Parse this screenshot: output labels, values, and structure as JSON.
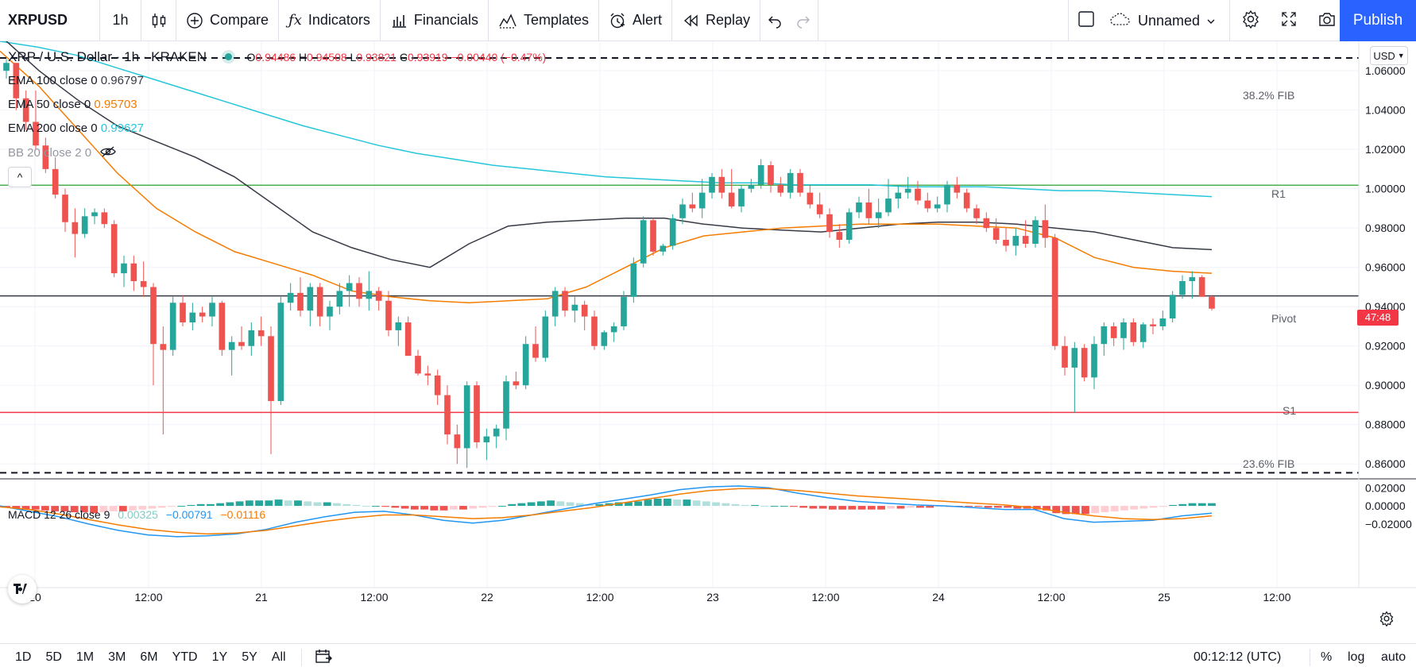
{
  "toolbar": {
    "symbol": "XRPUSD",
    "interval": "1h",
    "compare": "Compare",
    "indicators": "Indicators",
    "financials": "Financials",
    "templates": "Templates",
    "alert": "Alert",
    "replay": "Replay",
    "layout_name": "Unnamed",
    "publish": "Publish"
  },
  "legend": {
    "title": "XRP / U.S. Dollar · 1h · KRAKEN",
    "ohlc": {
      "o_label": "O",
      "o": "0.94486",
      "h_label": "H",
      "h": "0.94508",
      "l_label": "L",
      "l": "0.93821",
      "c_label": "C",
      "c": "0.93919",
      "change": "−0.00440 (−0.47%)"
    },
    "ema100": {
      "label": "EMA 100 close 0",
      "value": "0.96797",
      "color": "#363a45"
    },
    "ema50": {
      "label": "EMA 50 close 0",
      "value": "0.95703",
      "color": "#f57c00"
    },
    "ema200": {
      "label": "EMA 200 close 0",
      "value": "0.99627",
      "color": "#26c6da"
    },
    "bb": {
      "label": "BB 20 close 2 0"
    },
    "collapse_label": "^"
  },
  "levels": {
    "fib382": "38.2% FIB",
    "r1": "R1",
    "pivot": "Pivot",
    "s1": "S1",
    "fib236": "23.6% FIB"
  },
  "price_axis": {
    "currency": "USD",
    "ticks": [
      "1.06000",
      "1.04000",
      "1.02000",
      "1.00000",
      "0.98000",
      "0.96000",
      "0.94000",
      "0.92000",
      "0.90000",
      "0.88000",
      "0.86000"
    ],
    "countdown": "47:48"
  },
  "macd": {
    "label": "MACD 12 26 close 9",
    "hist": "0.00325",
    "macd": "−0.00791",
    "signal": "−0.01116",
    "ticks": [
      "0.02000",
      "0.00000",
      "−0.02000"
    ]
  },
  "time_axis": {
    "ticks": [
      "20",
      "12:00",
      "21",
      "12:00",
      "22",
      "12:00",
      "23",
      "12:00",
      "24",
      "12:00",
      "25",
      "12:00"
    ]
  },
  "bottom": {
    "ranges": [
      "1D",
      "5D",
      "1M",
      "3M",
      "6M",
      "YTD",
      "1Y",
      "5Y",
      "All"
    ],
    "clock": "00:12:12 (UTC)",
    "percent": "%",
    "log": "log",
    "auto": "auto"
  },
  "colors": {
    "up": "#26a69a",
    "down": "#ef5350",
    "ema100": "#363a45",
    "ema50": "#f57c00",
    "ema200": "#26c6da",
    "r1": "#4caf50",
    "s1": "#f23645",
    "accent": "#2962ff"
  },
  "chart_data": {
    "type": "candlestick",
    "symbol": "XRP / U.S. Dollar",
    "interval": "1h",
    "exchange": "KRAKEN",
    "ylim": [
      0.85,
      1.075
    ],
    "levels": [
      {
        "name": "38.2% FIB",
        "y": 1.0665,
        "style": "dashed"
      },
      {
        "name": "R1",
        "y": 1.0018,
        "color": "#4caf50"
      },
      {
        "name": "Pivot",
        "y": 0.9455,
        "color": "#363a45"
      },
      {
        "name": "S1",
        "y": 0.8862,
        "color": "#f23645"
      },
      {
        "name": "23.6% FIB",
        "y": 0.8555,
        "style": "dashed"
      }
    ],
    "candles": [
      [
        1.06,
        1.066,
        1.056,
        1.064
      ],
      [
        1.064,
        1.064,
        1.04,
        1.046
      ],
      [
        1.046,
        1.05,
        1.03,
        1.034
      ],
      [
        1.034,
        1.05,
        1.02,
        1.022
      ],
      [
        1.022,
        1.026,
        1.008,
        1.01
      ],
      [
        1.01,
        1.016,
        0.995,
        0.997
      ],
      [
        0.997,
        1.0,
        0.978,
        0.983
      ],
      [
        0.983,
        0.99,
        0.965,
        0.977
      ],
      [
        0.977,
        0.99,
        0.975,
        0.986
      ],
      [
        0.986,
        0.99,
        0.982,
        0.988
      ],
      [
        0.988,
        0.99,
        0.98,
        0.982
      ],
      [
        0.982,
        0.984,
        0.955,
        0.957
      ],
      [
        0.957,
        0.966,
        0.95,
        0.962
      ],
      [
        0.962,
        0.966,
        0.948,
        0.953
      ],
      [
        0.953,
        0.963,
        0.945,
        0.95
      ],
      [
        0.95,
        0.952,
        0.9,
        0.921
      ],
      [
        0.921,
        0.93,
        0.875,
        0.918
      ],
      [
        0.918,
        0.945,
        0.915,
        0.942
      ],
      [
        0.942,
        0.946,
        0.93,
        0.932
      ],
      [
        0.932,
        0.942,
        0.928,
        0.937
      ],
      [
        0.937,
        0.94,
        0.932,
        0.935
      ],
      [
        0.935,
        0.945,
        0.93,
        0.942
      ],
      [
        0.942,
        0.943,
        0.915,
        0.918
      ],
      [
        0.918,
        0.925,
        0.905,
        0.922
      ],
      [
        0.922,
        0.93,
        0.918,
        0.92
      ],
      [
        0.92,
        0.932,
        0.915,
        0.928
      ],
      [
        0.928,
        0.935,
        0.92,
        0.925
      ],
      [
        0.925,
        0.93,
        0.865,
        0.892
      ],
      [
        0.892,
        0.945,
        0.89,
        0.942
      ],
      [
        0.942,
        0.952,
        0.938,
        0.947
      ],
      [
        0.947,
        0.955,
        0.935,
        0.938
      ],
      [
        0.938,
        0.952,
        0.93,
        0.95
      ],
      [
        0.95,
        0.952,
        0.93,
        0.935
      ],
      [
        0.935,
        0.943,
        0.928,
        0.94
      ],
      [
        0.94,
        0.952,
        0.936,
        0.948
      ],
      [
        0.948,
        0.956,
        0.94,
        0.952
      ],
      [
        0.952,
        0.955,
        0.94,
        0.944
      ],
      [
        0.944,
        0.958,
        0.938,
        0.948
      ],
      [
        0.948,
        0.95,
        0.938,
        0.943
      ],
      [
        0.943,
        0.948,
        0.925,
        0.928
      ],
      [
        0.928,
        0.935,
        0.92,
        0.932
      ],
      [
        0.932,
        0.935,
        0.915,
        0.915
      ],
      [
        0.915,
        0.918,
        0.905,
        0.906
      ],
      [
        0.906,
        0.91,
        0.9,
        0.905
      ],
      [
        0.905,
        0.908,
        0.89,
        0.895
      ],
      [
        0.895,
        0.9,
        0.87,
        0.875
      ],
      [
        0.875,
        0.88,
        0.86,
        0.868
      ],
      [
        0.868,
        0.902,
        0.858,
        0.9
      ],
      [
        0.9,
        0.902,
        0.868,
        0.871
      ],
      [
        0.871,
        0.878,
        0.862,
        0.874
      ],
      [
        0.874,
        0.88,
        0.868,
        0.878
      ],
      [
        0.878,
        0.905,
        0.872,
        0.902
      ],
      [
        0.902,
        0.907,
        0.898,
        0.9
      ],
      [
        0.9,
        0.925,
        0.898,
        0.921
      ],
      [
        0.921,
        0.93,
        0.912,
        0.914
      ],
      [
        0.914,
        0.938,
        0.912,
        0.935
      ],
      [
        0.935,
        0.95,
        0.93,
        0.948
      ],
      [
        0.948,
        0.95,
        0.935,
        0.938
      ],
      [
        0.938,
        0.945,
        0.932,
        0.941
      ],
      [
        0.941,
        0.943,
        0.928,
        0.935
      ],
      [
        0.935,
        0.938,
        0.918,
        0.92
      ],
      [
        0.92,
        0.928,
        0.918,
        0.927
      ],
      [
        0.927,
        0.932,
        0.922,
        0.93
      ],
      [
        0.93,
        0.948,
        0.928,
        0.945
      ],
      [
        0.945,
        0.965,
        0.942,
        0.962
      ],
      [
        0.962,
        0.986,
        0.96,
        0.984
      ],
      [
        0.984,
        0.985,
        0.966,
        0.968
      ],
      [
        0.968,
        0.972,
        0.966,
        0.971
      ],
      [
        0.971,
        0.987,
        0.969,
        0.985
      ],
      [
        0.985,
        0.995,
        0.982,
        0.992
      ],
      [
        0.992,
        0.998,
        0.988,
        0.99
      ],
      [
        0.99,
        1.005,
        0.985,
        0.998
      ],
      [
        0.998,
        1.008,
        0.995,
        1.006
      ],
      [
        1.006,
        1.01,
        0.995,
        0.998
      ],
      [
        0.998,
        1.01,
        0.99,
        0.991
      ],
      [
        0.991,
        1.002,
        0.988,
        1.0
      ],
      [
        1.0,
        1.005,
        0.998,
        1.002
      ],
      [
        1.002,
        1.015,
        1.0,
        1.012
      ],
      [
        1.012,
        1.014,
        0.998,
        1.002
      ],
      [
        1.002,
        1.006,
        0.996,
        0.998
      ],
      [
        0.998,
        1.01,
        0.995,
        1.008
      ],
      [
        1.008,
        1.01,
        0.996,
        0.998
      ],
      [
        0.998,
        1.002,
        0.99,
        0.992
      ],
      [
        0.992,
        0.998,
        0.985,
        0.987
      ],
      [
        0.987,
        0.99,
        0.975,
        0.978
      ],
      [
        0.978,
        0.982,
        0.97,
        0.974
      ],
      [
        0.974,
        0.99,
        0.972,
        0.988
      ],
      [
        0.988,
        0.996,
        0.985,
        0.993
      ],
      [
        0.993,
        1.0,
        0.982,
        0.985
      ],
      [
        0.985,
        0.995,
        0.98,
        0.988
      ],
      [
        0.988,
        1.005,
        0.986,
        0.995
      ],
      [
        0.995,
        1.002,
        0.99,
        0.998
      ],
      [
        0.998,
        1.006,
        0.995,
        1.0
      ],
      [
        1.0,
        1.004,
        0.992,
        0.994
      ],
      [
        0.994,
        0.998,
        0.988,
        0.99
      ],
      [
        0.99,
        0.996,
        0.988,
        0.992
      ],
      [
        0.992,
        1.004,
        0.988,
        1.002
      ],
      [
        1.002,
        1.006,
        0.995,
        0.998
      ],
      [
        0.998,
        1.0,
        0.988,
        0.99
      ],
      [
        0.99,
        0.992,
        0.982,
        0.985
      ],
      [
        0.985,
        0.988,
        0.978,
        0.98
      ],
      [
        0.98,
        0.985,
        0.972,
        0.974
      ],
      [
        0.974,
        0.98,
        0.968,
        0.971
      ],
      [
        0.971,
        0.98,
        0.966,
        0.976
      ],
      [
        0.976,
        0.984,
        0.97,
        0.972
      ],
      [
        0.972,
        0.986,
        0.97,
        0.984
      ],
      [
        0.984,
        0.992,
        0.97,
        0.975
      ],
      [
        0.975,
        0.977,
        0.918,
        0.92
      ],
      [
        0.92,
        0.925,
        0.905,
        0.909
      ],
      [
        0.909,
        0.922,
        0.886,
        0.919
      ],
      [
        0.919,
        0.921,
        0.902,
        0.904
      ],
      [
        0.904,
        0.925,
        0.898,
        0.921
      ],
      [
        0.921,
        0.932,
        0.915,
        0.93
      ],
      [
        0.93,
        0.932,
        0.92,
        0.924
      ],
      [
        0.924,
        0.934,
        0.918,
        0.932
      ],
      [
        0.932,
        0.934,
        0.92,
        0.922
      ],
      [
        0.922,
        0.932,
        0.919,
        0.931
      ],
      [
        0.931,
        0.934,
        0.926,
        0.93
      ],
      [
        0.93,
        0.938,
        0.928,
        0.934
      ],
      [
        0.934,
        0.948,
        0.932,
        0.946
      ],
      [
        0.946,
        0.956,
        0.944,
        0.953
      ],
      [
        0.953,
        0.958,
        0.944,
        0.955
      ],
      [
        0.955,
        0.956,
        0.946,
        0.945
      ],
      [
        0.945,
        0.946,
        0.938,
        0.939
      ]
    ],
    "ema200": [
      1.075,
      1.072,
      1.068,
      1.062,
      1.056,
      1.05,
      1.044,
      1.038,
      1.032,
      1.027,
      1.022,
      1.018,
      1.015,
      1.012,
      1.01,
      1.008,
      1.006,
      1.005,
      1.004,
      1.003,
      1.003,
      1.002,
      1.002,
      1.002,
      1.001,
      1.001,
      1.001,
      1.0,
      0.999,
      0.999,
      0.998,
      0.997,
      0.996
    ],
    "ema100": [
      1.078,
      1.06,
      1.045,
      1.032,
      1.024,
      1.016,
      1.006,
      0.992,
      0.978,
      0.97,
      0.964,
      0.96,
      0.972,
      0.981,
      0.983,
      0.984,
      0.985,
      0.985,
      0.982,
      0.98,
      0.979,
      0.978,
      0.98,
      0.982,
      0.983,
      0.983,
      0.982,
      0.98,
      0.978,
      0.974,
      0.97,
      0.969
    ],
    "ema50": [
      1.07,
      1.052,
      1.03,
      1.008,
      0.99,
      0.978,
      0.968,
      0.962,
      0.956,
      0.948,
      0.945,
      0.943,
      0.942,
      0.943,
      0.944,
      0.95,
      0.96,
      0.97,
      0.976,
      0.978,
      0.98,
      0.981,
      0.982,
      0.982,
      0.982,
      0.981,
      0.98,
      0.975,
      0.965,
      0.96,
      0.958,
      0.957
    ],
    "macd": {
      "ylim": [
        -0.035,
        0.022
      ],
      "hist": [
        -0.002,
        -0.003,
        -0.004,
        -0.004,
        -0.005,
        -0.006,
        -0.006,
        -0.007,
        -0.007,
        -0.008,
        -0.007,
        -0.006,
        -0.006,
        -0.005,
        -0.004,
        -0.003,
        -0.002,
        -0.001,
        0.0,
        0.001,
        0.002,
        0.002,
        0.003,
        0.004,
        0.005,
        0.006,
        0.006,
        0.006,
        0.007,
        0.006,
        0.006,
        0.005,
        0.004,
        0.004,
        0.003,
        0.002,
        0.001,
        0.0,
        0.0,
        -0.001,
        -0.002,
        -0.003,
        -0.004,
        -0.004,
        -0.005,
        -0.005,
        -0.004,
        -0.004,
        -0.003,
        -0.002,
        -0.001,
        0.0,
        0.002,
        0.003,
        0.004,
        0.005,
        0.006,
        0.005,
        0.004,
        0.003,
        0.002,
        0.002,
        0.003,
        0.004,
        0.004,
        0.005,
        0.007,
        0.008,
        0.008,
        0.007,
        0.007,
        0.006,
        0.005,
        0.004,
        0.003,
        0.002,
        0.001,
        0.001,
        0.0,
        0.0,
        0.0,
        -0.001,
        -0.002,
        -0.003,
        -0.003,
        -0.004,
        -0.004,
        -0.004,
        -0.004,
        -0.004,
        -0.004,
        -0.003,
        -0.003,
        -0.002,
        -0.002,
        -0.002,
        -0.001,
        -0.001,
        -0.001,
        -0.001,
        -0.001,
        -0.002,
        -0.002,
        -0.002,
        -0.003,
        -0.003,
        -0.004,
        -0.005,
        -0.008,
        -0.009,
        -0.009,
        -0.009,
        -0.008,
        -0.007,
        -0.006,
        -0.005,
        -0.004,
        -0.003,
        -0.002,
        -0.001,
        0.001,
        0.002,
        0.003,
        0.003,
        0.003
      ],
      "macd_line": [
        0.0,
        -0.006,
        -0.012,
        -0.02,
        -0.027,
        -0.032,
        -0.034,
        -0.033,
        -0.031,
        -0.026,
        -0.018,
        -0.012,
        -0.007,
        -0.006,
        -0.01,
        -0.016,
        -0.019,
        -0.016,
        -0.01,
        -0.004,
        0.002,
        0.007,
        0.012,
        0.018,
        0.021,
        0.022,
        0.02,
        0.014,
        0.009,
        0.005,
        0.003,
        0.001,
        0.0,
        -0.002,
        -0.004,
        -0.004,
        -0.014,
        -0.018,
        -0.017,
        -0.016,
        -0.011,
        -0.008
      ],
      "signal_line": [
        -0.001,
        -0.004,
        -0.009,
        -0.015,
        -0.021,
        -0.026,
        -0.029,
        -0.031,
        -0.03,
        -0.027,
        -0.022,
        -0.017,
        -0.013,
        -0.01,
        -0.01,
        -0.012,
        -0.014,
        -0.013,
        -0.01,
        -0.006,
        -0.002,
        0.003,
        0.008,
        0.013,
        0.017,
        0.019,
        0.019,
        0.017,
        0.014,
        0.011,
        0.009,
        0.007,
        0.005,
        0.003,
        0.001,
        -0.002,
        -0.007,
        -0.011,
        -0.014,
        -0.015,
        -0.014,
        -0.011
      ]
    }
  }
}
